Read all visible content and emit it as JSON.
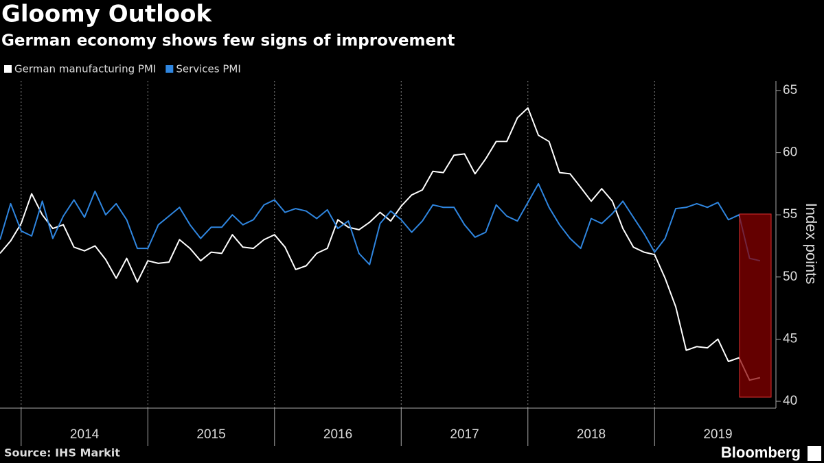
{
  "chart_data": {
    "type": "line",
    "title": "Gloomy Outlook",
    "subtitle": "German economy shows few signs of improvement",
    "y_axis_label": "Index points",
    "source": "Source: IHS Markit",
    "brand": "Bloomberg",
    "x": [
      2013.833,
      2013.917,
      2014.0,
      2014.083,
      2014.167,
      2014.25,
      2014.333,
      2014.417,
      2014.5,
      2014.583,
      2014.667,
      2014.75,
      2014.833,
      2014.917,
      2015.0,
      2015.083,
      2015.167,
      2015.25,
      2015.333,
      2015.417,
      2015.5,
      2015.583,
      2015.667,
      2015.75,
      2015.833,
      2015.917,
      2016.0,
      2016.083,
      2016.167,
      2016.25,
      2016.333,
      2016.417,
      2016.5,
      2016.583,
      2016.667,
      2016.75,
      2016.833,
      2016.917,
      2017.0,
      2017.083,
      2017.167,
      2017.25,
      2017.333,
      2017.417,
      2017.5,
      2017.583,
      2017.667,
      2017.75,
      2017.833,
      2017.917,
      2018.0,
      2018.083,
      2018.167,
      2018.25,
      2018.333,
      2018.417,
      2018.5,
      2018.583,
      2018.667,
      2018.75,
      2018.833,
      2018.917,
      2019.0,
      2019.083,
      2019.167,
      2019.25,
      2019.333,
      2019.417,
      2019.5,
      2019.583,
      2019.667,
      2019.75,
      2019.833
    ],
    "xlim": [
      2013.833,
      2019.958
    ],
    "xticks": [
      2014,
      2015,
      2016,
      2017,
      2018,
      2019
    ],
    "x_labels": [
      "2014",
      "2015",
      "2016",
      "2017",
      "2018",
      "2019"
    ],
    "ylim": [
      39.45,
      65.77
    ],
    "yticks": [
      40,
      45,
      50,
      55,
      60,
      65
    ],
    "grid": true,
    "series": [
      {
        "name": "German manufacturing PMI",
        "color": "#ffffff",
        "values": [
          51.9,
          52.9,
          54.3,
          56.7,
          55.0,
          53.9,
          54.2,
          52.4,
          52.1,
          52.5,
          51.4,
          49.9,
          51.5,
          49.6,
          51.3,
          51.1,
          51.2,
          53.0,
          52.3,
          51.3,
          52.0,
          51.9,
          53.4,
          52.4,
          52.3,
          53.0,
          53.4,
          52.4,
          50.6,
          50.9,
          51.9,
          52.3,
          54.6,
          54.0,
          53.8,
          54.4,
          55.2,
          54.5,
          55.7,
          56.6,
          57.0,
          58.5,
          58.4,
          59.8,
          59.9,
          58.3,
          59.5,
          60.9,
          60.9,
          62.8,
          63.6,
          61.4,
          60.9,
          58.4,
          58.3,
          57.2,
          56.1,
          57.1,
          56.1,
          53.9,
          52.4,
          52.0,
          51.8,
          49.9,
          47.6,
          44.1,
          44.4,
          44.3,
          45.0,
          43.2,
          43.5,
          41.7,
          41.9
        ]
      },
      {
        "name": "Services PMI",
        "color": "#2f86e0",
        "values": [
          53.0,
          55.9,
          53.7,
          53.3,
          56.1,
          53.1,
          54.9,
          56.2,
          54.8,
          56.9,
          55.0,
          55.9,
          54.6,
          52.3,
          52.3,
          54.2,
          54.9,
          55.6,
          54.2,
          53.1,
          54.0,
          54.0,
          55.0,
          54.2,
          54.6,
          55.8,
          56.2,
          55.2,
          55.5,
          55.3,
          54.7,
          55.4,
          53.9,
          54.5,
          51.9,
          51.0,
          54.3,
          55.3,
          54.6,
          53.6,
          54.5,
          55.8,
          55.6,
          55.6,
          54.2,
          53.2,
          53.6,
          55.8,
          54.9,
          54.5,
          56.0,
          57.5,
          55.6,
          54.2,
          53.1,
          52.3,
          54.7,
          54.3,
          55.1,
          56.1,
          54.8,
          53.5,
          52.0,
          53.1,
          55.5,
          55.6,
          55.9,
          55.6,
          56.0,
          54.6,
          55.0,
          51.5,
          51.3
        ]
      }
    ]
  }
}
